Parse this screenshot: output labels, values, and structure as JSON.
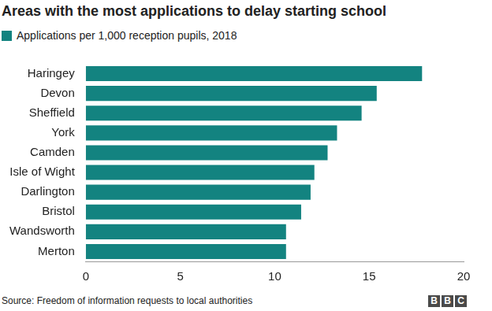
{
  "chart_data": {
    "type": "bar",
    "orientation": "horizontal",
    "title": "Areas with the most applications to delay starting school",
    "subtitle": "Applications per 1,000 reception pupils, 2018",
    "source": "Source: Freedom of information requests to local authorities",
    "logo": "BBC",
    "categories": [
      "Haringey",
      "Devon",
      "Sheffield",
      "York",
      "Camden",
      "Isle of Wight",
      "Darlington",
      "Bristol",
      "Wandsworth",
      "Merton"
    ],
    "values": [
      17.8,
      15.4,
      14.6,
      13.3,
      12.8,
      12.1,
      11.9,
      11.4,
      10.6,
      10.6
    ],
    "color": "#138380",
    "xlim": [
      0,
      20
    ],
    "xticks": [
      0,
      5,
      10,
      15,
      20
    ],
    "grid": false
  }
}
